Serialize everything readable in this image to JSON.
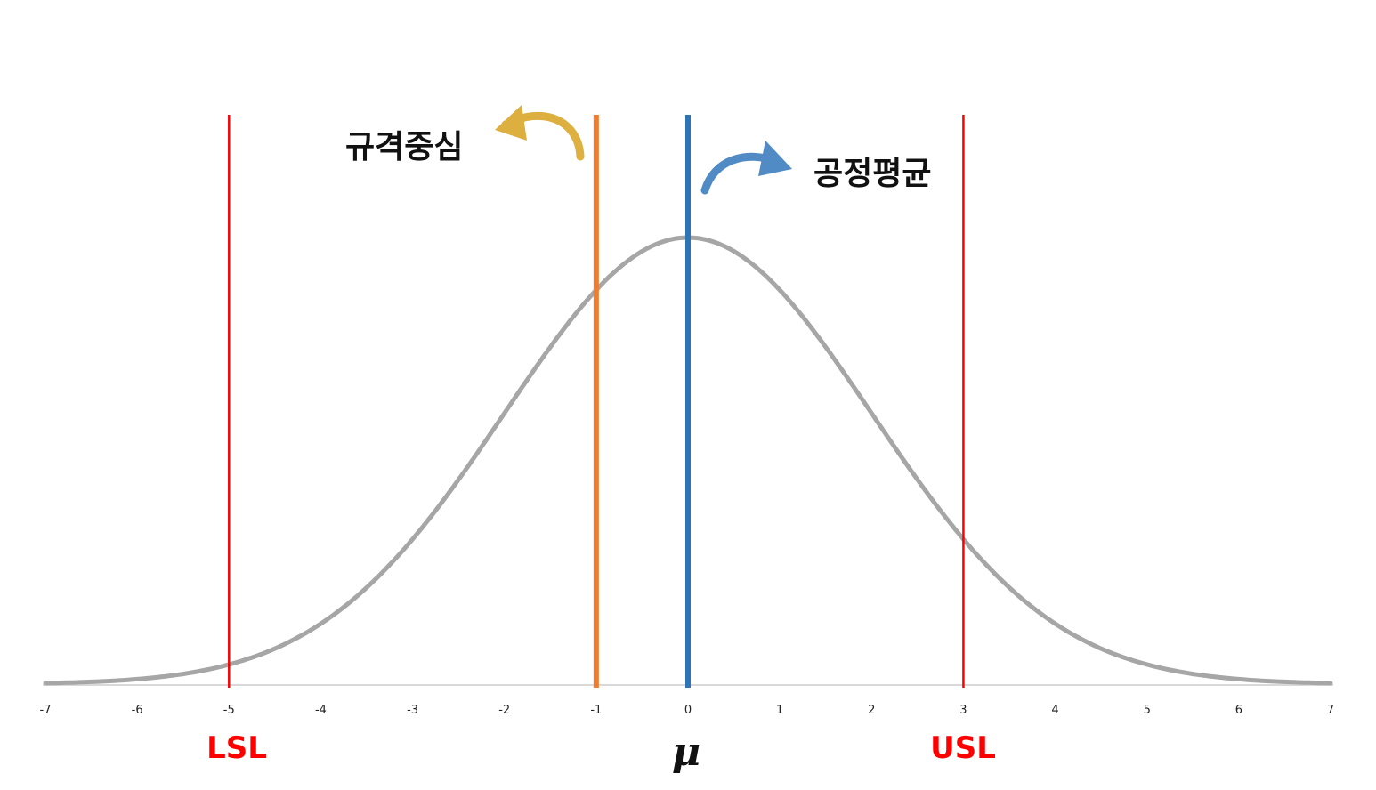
{
  "chart_data": {
    "type": "line",
    "title": "",
    "xlabel": "",
    "ylabel": "",
    "xlim": [
      -7,
      7
    ],
    "xticks": [
      "-7",
      "-6",
      "-5",
      "-4",
      "-3",
      "-2",
      "-1",
      "0",
      "1",
      "2",
      "3",
      "4",
      "5",
      "6",
      "7"
    ],
    "curve": {
      "distribution": "normal",
      "mean": 0,
      "sd": 2,
      "color": "#a6a6a6"
    },
    "vlines": [
      {
        "id": "lsl",
        "x": -5,
        "color": "#ff0000",
        "label": "LSL"
      },
      {
        "id": "spec-center",
        "x": -1,
        "color": "#ed7d31"
      },
      {
        "id": "process-mean",
        "x": 0,
        "color": "#2e75b6",
        "label": "μ"
      },
      {
        "id": "usl",
        "x": 3,
        "color": "#ff0000",
        "label": "USL"
      }
    ],
    "annotations": {
      "spec_center": {
        "text": "규격중심",
        "arrow_color": "#d9a72a"
      },
      "process_mean": {
        "text": "공정평균",
        "arrow_color": "#3f7fbf"
      }
    }
  }
}
